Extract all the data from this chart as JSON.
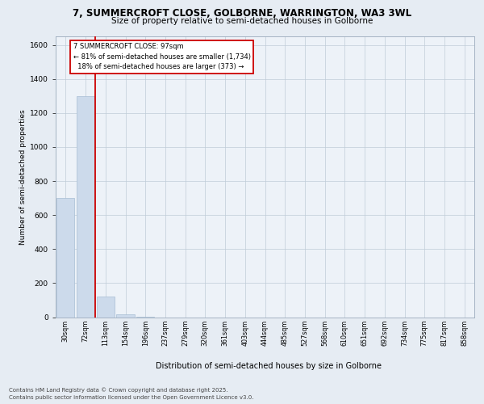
{
  "title_line1": "7, SUMMERCROFT CLOSE, GOLBORNE, WARRINGTON, WA3 3WL",
  "title_line2": "Size of property relative to semi-detached houses in Golborne",
  "xlabel": "Distribution of semi-detached houses by size in Golborne",
  "ylabel": "Number of semi-detached properties",
  "categories": [
    "30sqm",
    "72sqm",
    "113sqm",
    "154sqm",
    "196sqm",
    "237sqm",
    "279sqm",
    "320sqm",
    "361sqm",
    "403sqm",
    "444sqm",
    "485sqm",
    "527sqm",
    "568sqm",
    "610sqm",
    "651sqm",
    "692sqm",
    "734sqm",
    "775sqm",
    "817sqm",
    "858sqm"
  ],
  "values": [
    700,
    1300,
    120,
    15,
    2,
    0,
    0,
    0,
    0,
    0,
    0,
    0,
    0,
    0,
    0,
    0,
    0,
    0,
    0,
    0,
    0
  ],
  "bar_color": "#ccdaeb",
  "bar_edge_color": "#a8bdd4",
  "property_line_x": 1.5,
  "annotation_line1": "7 SUMMERCROFT CLOSE: 97sqm",
  "annotation_line2": "← 81% of semi-detached houses are smaller (1,734)",
  "annotation_line3": "  18% of semi-detached houses are larger (373) →",
  "annotation_box_facecolor": "#ffffff",
  "annotation_box_edgecolor": "#cc0000",
  "property_line_color": "#cc0000",
  "ylim": [
    0,
    1650
  ],
  "yticks": [
    0,
    200,
    400,
    600,
    800,
    1000,
    1200,
    1400,
    1600
  ],
  "bg_color": "#e6ecf3",
  "plot_bg_color": "#edf2f8",
  "grid_color": "#c0ccd8",
  "footer_line1": "Contains HM Land Registry data © Crown copyright and database right 2025.",
  "footer_line2": "Contains public sector information licensed under the Open Government Licence v3.0."
}
